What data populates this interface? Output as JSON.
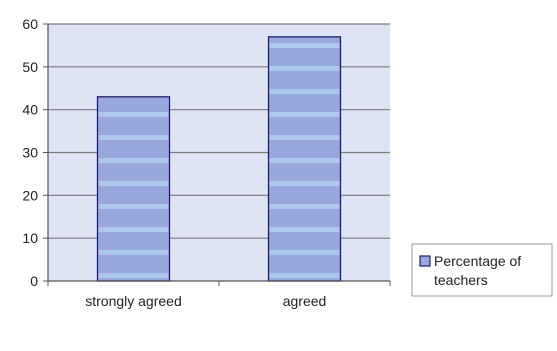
{
  "chart_data": {
    "type": "bar",
    "categories": [
      "strongly agreed",
      "agreed"
    ],
    "series": [
      {
        "name": "Percentage of teachers",
        "values": [
          43,
          57
        ]
      }
    ],
    "legend": {
      "lines": [
        "Percentage of",
        "teachers"
      ],
      "placement": "right"
    },
    "ylim": [
      0,
      60
    ],
    "yticks": [
      0,
      10,
      20,
      30,
      40,
      50,
      60
    ],
    "ytick_labels": [
      "0",
      "10",
      "20",
      "30",
      "40",
      "50",
      "60"
    ],
    "grid": true,
    "title": "",
    "xlabel": "",
    "ylabel": "",
    "colors": {
      "plot_bg": "#dfe4f4",
      "bar_fill": "#98a8dc",
      "bar_stripe": "#b2cdf0",
      "bar_edge": "#20206a",
      "grid": "#7a7a7a",
      "axis": "#555555"
    }
  }
}
